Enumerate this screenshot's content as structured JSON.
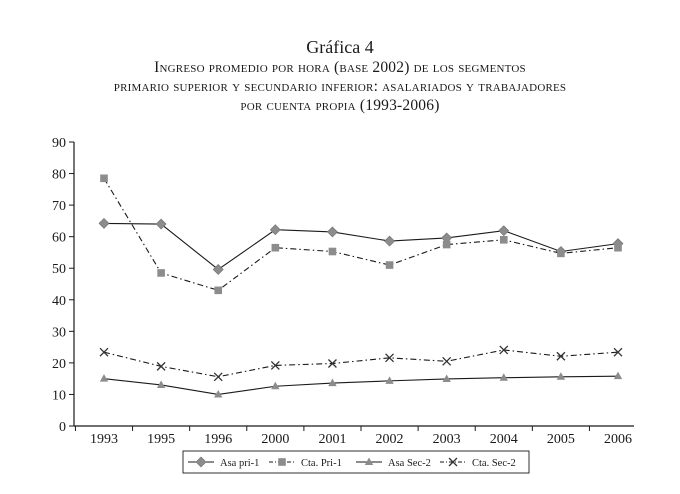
{
  "chart_data": {
    "type": "line",
    "title": "Gráfica 4",
    "subtitle": [
      "Ingreso promedio por hora (base 2002) de los segmentos",
      "primario superior y secundario inferior: asalariados y trabajadores",
      "por cuenta propia (1993-2006)"
    ],
    "categories": [
      "1993",
      "1995",
      "1996",
      "2000",
      "2001",
      "2002",
      "2003",
      "2004",
      "2005",
      "2006"
    ],
    "ylim": [
      0,
      90
    ],
    "yticks": [
      0,
      10,
      20,
      30,
      40,
      50,
      60,
      70,
      80,
      90
    ],
    "grid": false,
    "legend_position": "bottom",
    "series": [
      {
        "name": "Asa pri-1",
        "marker": "diamond",
        "line": "solid",
        "color": "#8c8c8c",
        "values": [
          64.2,
          64.0,
          49.6,
          62.2,
          61.5,
          58.6,
          59.6,
          61.9,
          55.3,
          57.8
        ]
      },
      {
        "name": "Cta. Pri-1",
        "marker": "square",
        "line": "dash-dot",
        "color": "#8c8c8c",
        "values": [
          78.5,
          48.5,
          43.0,
          56.5,
          55.3,
          51.0,
          57.5,
          59.0,
          54.7,
          56.5
        ]
      },
      {
        "name": "Asa Sec-2",
        "marker": "triangle",
        "line": "solid",
        "color": "#8c8c8c",
        "values": [
          15.0,
          13.0,
          10.0,
          12.6,
          13.6,
          14.3,
          14.9,
          15.3,
          15.6,
          15.8
        ]
      },
      {
        "name": "Cta. Sec-2",
        "marker": "x",
        "line": "dash-dot",
        "color": "#333333",
        "values": [
          23.4,
          18.9,
          15.6,
          19.2,
          19.8,
          21.6,
          20.5,
          24.1,
          22.1,
          23.4
        ]
      }
    ]
  }
}
